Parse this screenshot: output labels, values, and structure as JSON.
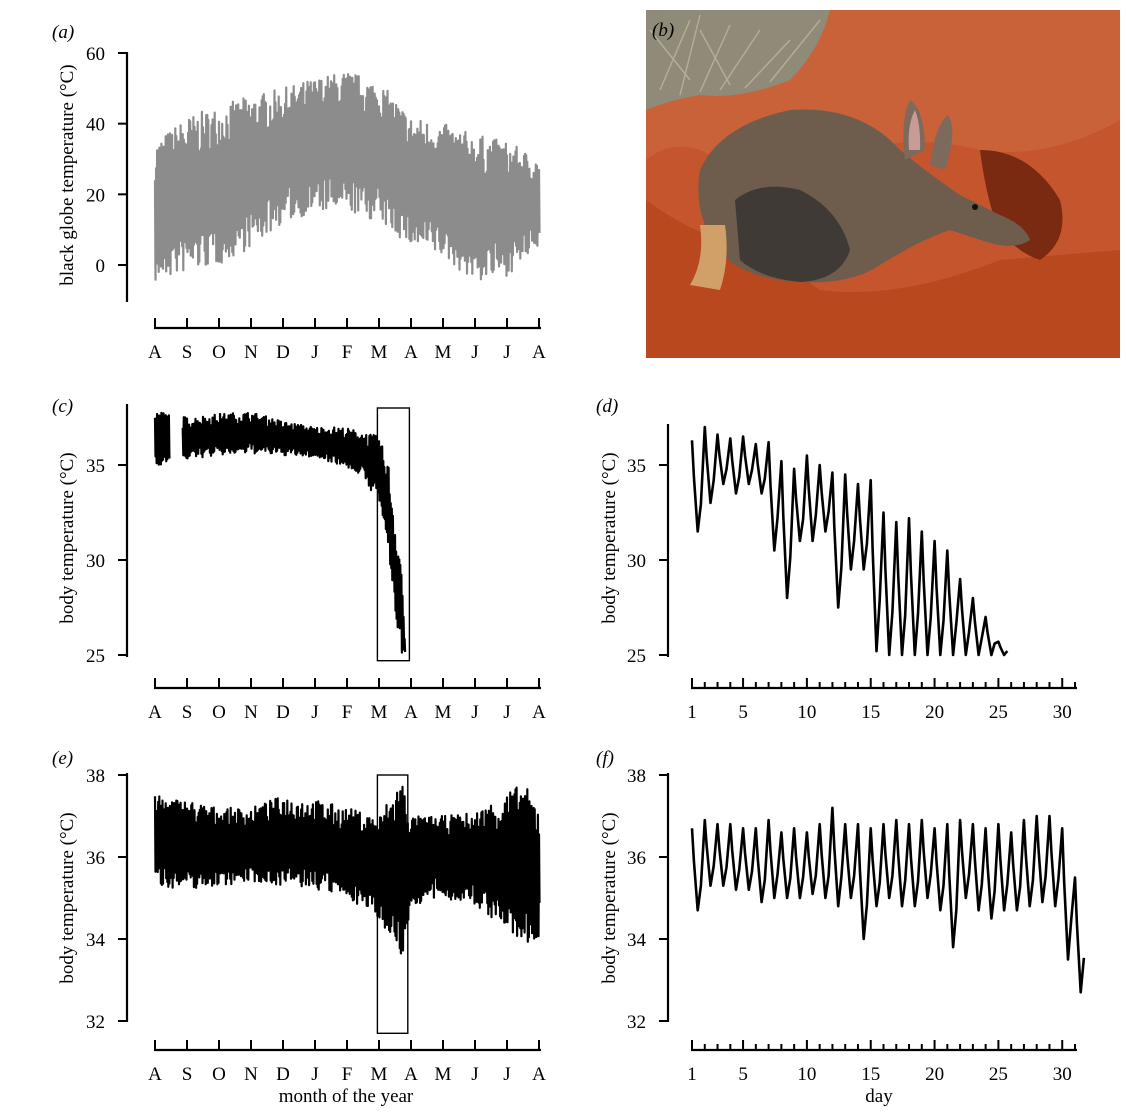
{
  "chart_data": [
    {
      "panel": "a",
      "type": "line",
      "ylabel": "black globe temperature (°C)",
      "xlabel": "",
      "ylim": [
        -10,
        60
      ],
      "yticks": [
        0,
        20,
        40,
        60
      ],
      "xticks": [
        "A",
        "S",
        "O",
        "N",
        "D",
        "J",
        "F",
        "M",
        "A",
        "M",
        "J",
        "J",
        "A"
      ],
      "series": [
        {
          "color": "#8c8c8c",
          "style": "dense daily cycling",
          "envelope_by_month": {
            "x": [
              "A",
              "S",
              "O",
              "N",
              "D",
              "J",
              "F",
              "M",
              "A",
              "M",
              "J",
              "J",
              "A"
            ],
            "min": [
              -5,
              -2,
              0,
              5,
              12,
              15,
              15,
              12,
              5,
              2,
              -5,
              -3,
              5
            ],
            "max": [
              35,
              42,
              45,
              48,
              50,
              53,
              55,
              52,
              42,
              40,
              37,
              35,
              30
            ]
          }
        }
      ]
    },
    {
      "panel": "c",
      "type": "line",
      "ylabel": "body temperature (°C)",
      "xlabel": "",
      "ylim": [
        25,
        38
      ],
      "yticks": [
        25,
        30,
        35
      ],
      "xticks": [
        "A",
        "S",
        "O",
        "N",
        "D",
        "J",
        "F",
        "M",
        "A",
        "M",
        "J",
        "J",
        "A"
      ],
      "highlight_box": {
        "x": [
          6.95,
          7.95
        ],
        "y": [
          24.7,
          38
        ]
      },
      "series": [
        {
          "color": "#000000",
          "style": "dense daily cycling",
          "envelope_by_month": {
            "x": [
              0,
              0.5,
              1,
              2,
              3,
              4,
              5,
              5.8,
              6.4,
              7,
              7.3,
              7.5,
              7.7,
              7.8
            ],
            "min": [
              35.0,
              35.0,
              35.3,
              35.5,
              35.6,
              35.5,
              35.4,
              35.0,
              34.5,
              33.0,
              30.0,
              27.0,
              25.0,
              25.0
            ],
            "max": [
              37.8,
              37.8,
              37.5,
              37.7,
              37.8,
              37.3,
              37.0,
              37.0,
              36.8,
              36.5,
              35.0,
              32.0,
              30.0,
              26.0
            ]
          },
          "gaps": [
            [
              0.45,
              0.85
            ]
          ]
        }
      ]
    },
    {
      "panel": "d",
      "type": "line",
      "ylabel": "body temperature (°C)",
      "xlabel": "",
      "ylim": [
        25,
        37.5
      ],
      "yticks": [
        25,
        30,
        35
      ],
      "xticks": [
        1,
        5,
        10,
        15,
        20,
        25,
        30
      ],
      "xlim": [
        1,
        31
      ],
      "series": [
        {
          "color": "#000000",
          "days": [
            1,
            2,
            3,
            4,
            5,
            6,
            7,
            8,
            9,
            10,
            11,
            12,
            13,
            14,
            15,
            16,
            17,
            18,
            19,
            20,
            21,
            22,
            23,
            24,
            25
          ],
          "daily_max": [
            36.3,
            37.0,
            36.6,
            36.4,
            36.5,
            36.1,
            36.2,
            35.2,
            34.8,
            35.5,
            35.0,
            34.6,
            34.5,
            34.0,
            34.2,
            32.5,
            32.0,
            32.2,
            31.5,
            31.0,
            30.5,
            29.0,
            28.0,
            27.0,
            25.7
          ],
          "daily_min": [
            31.5,
            33.0,
            34.0,
            33.5,
            34.0,
            33.5,
            30.5,
            28.0,
            31.0,
            31.0,
            31.5,
            27.5,
            29.5,
            29.5,
            25.2,
            25.0,
            25.0,
            25.0,
            25.0,
            25.0,
            25.0,
            25.0,
            25.0,
            25.0,
            25.0
          ]
        }
      ]
    },
    {
      "panel": "e",
      "type": "line",
      "ylabel": "body temperature (°C)",
      "xlabel": "month of the year",
      "ylim": [
        32,
        38
      ],
      "yticks": [
        32,
        34,
        36,
        38
      ],
      "xticks": [
        "A",
        "S",
        "O",
        "N",
        "D",
        "J",
        "F",
        "M",
        "A",
        "M",
        "J",
        "J",
        "A"
      ],
      "highlight_box": {
        "x": [
          6.95,
          7.9
        ],
        "y": [
          31.7,
          38
        ]
      },
      "series": [
        {
          "color": "#000000",
          "style": "dense daily cycling",
          "envelope_by_month": {
            "x": [
              0,
              1,
              2,
              3,
              4,
              5,
              6,
              7,
              7.7,
              8,
              9,
              10,
              11,
              11.5,
              12
            ],
            "min": [
              35.3,
              35.2,
              35.3,
              35.4,
              35.3,
              35.2,
              35.0,
              34.5,
              33.5,
              34.8,
              35.0,
              34.8,
              34.2,
              33.8,
              34.0
            ],
            "max": [
              37.5,
              37.4,
              37.2,
              37.2,
              37.5,
              37.4,
              37.2,
              37.0,
              38.0,
              37.0,
              37.0,
              37.1,
              37.6,
              37.8,
              37.3
            ]
          }
        }
      ]
    },
    {
      "panel": "f",
      "type": "line",
      "ylabel": "body temperature (°C)",
      "xlabel": "day",
      "ylim": [
        32,
        38
      ],
      "yticks": [
        32,
        34,
        36,
        38
      ],
      "xticks": [
        1,
        5,
        10,
        15,
        20,
        25,
        30
      ],
      "xlim": [
        1,
        31
      ],
      "series": [
        {
          "color": "#000000",
          "days": [
            1,
            2,
            3,
            4,
            5,
            6,
            7,
            8,
            9,
            10,
            11,
            12,
            13,
            14,
            15,
            16,
            17,
            18,
            19,
            20,
            21,
            22,
            23,
            24,
            25,
            26,
            27,
            28,
            29,
            30,
            31
          ],
          "daily_max": [
            36.7,
            36.9,
            36.8,
            36.8,
            36.7,
            36.7,
            36.9,
            36.6,
            36.7,
            36.6,
            36.8,
            37.2,
            36.8,
            36.8,
            36.7,
            36.8,
            36.9,
            36.8,
            36.9,
            36.7,
            36.8,
            36.9,
            36.8,
            36.7,
            36.8,
            36.6,
            36.9,
            37.0,
            37.0,
            36.7,
            35.5
          ],
          "daily_min": [
            34.7,
            35.3,
            35.3,
            35.2,
            35.2,
            34.9,
            35.0,
            35.0,
            35.0,
            35.1,
            35.0,
            34.8,
            35.0,
            34.0,
            34.8,
            35.0,
            34.8,
            34.8,
            35.0,
            34.7,
            33.8,
            35.0,
            34.7,
            34.5,
            34.7,
            34.7,
            34.8,
            34.9,
            34.8,
            33.5,
            32.7
          ]
        }
      ]
    }
  ],
  "panels": {
    "a": {
      "letter": "(a)"
    },
    "b": {
      "letter": "(b)"
    },
    "c": {
      "letter": "(c)"
    },
    "d": {
      "letter": "(d)"
    },
    "e": {
      "letter": "(e)"
    },
    "f": {
      "letter": "(f)"
    }
  },
  "axis_text": {
    "a_ylabel": "black globe temperature (°C)",
    "body_temp": "body temperature (°C)",
    "month_xlabel": "month of the year",
    "day_xlabel": "day"
  },
  "photo": {
    "subject": "aardvark digging at burrow in red sand",
    "colors": {
      "sand": "#c4522a",
      "sand_dark": "#8e3217",
      "animal": "#6b5a4c",
      "grass": "#9a9480"
    }
  }
}
